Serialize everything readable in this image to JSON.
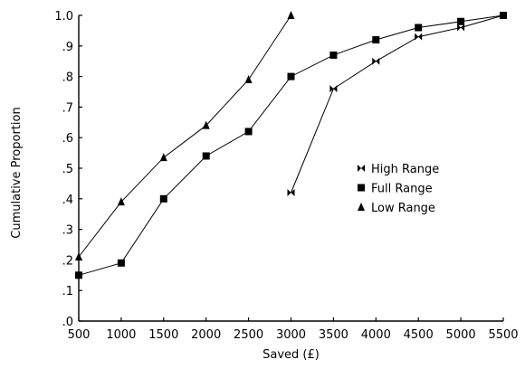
{
  "chart_data": {
    "type": "line",
    "xlabel": "Saved (£)",
    "ylabel": "Cumulative Proportion",
    "xlim": [
      500,
      5500
    ],
    "ylim": [
      0,
      1.0
    ],
    "x_ticks": [
      500,
      1000,
      1500,
      2000,
      2500,
      3000,
      3500,
      4000,
      4500,
      5000,
      5500
    ],
    "x_tick_labels": [
      "500",
      "1000",
      "1500",
      "2000",
      "2500",
      "3000",
      "3500",
      "4000",
      "4500",
      "5000",
      "5500"
    ],
    "y_ticks": [
      0,
      0.1,
      0.2,
      0.3,
      0.4,
      0.5,
      0.6,
      0.7,
      0.8,
      0.9,
      1.0
    ],
    "y_tick_labels": [
      ".0",
      ".1",
      ".2",
      ".3",
      ".4",
      ".5",
      ".6",
      ".7",
      ".8",
      ".9",
      "1.0"
    ],
    "grid": false,
    "legend_position": "center-right",
    "series": [
      {
        "name": "High Range",
        "marker": "bowtie",
        "x": [
          3000,
          3500,
          4000,
          4500,
          5000,
          5500
        ],
        "values": [
          0.42,
          0.76,
          0.85,
          0.93,
          0.96,
          1.0
        ]
      },
      {
        "name": "Full Range",
        "marker": "square",
        "x": [
          500,
          1000,
          1500,
          2000,
          2500,
          3000,
          3500,
          4000,
          4500,
          5000,
          5500
        ],
        "values": [
          0.15,
          0.19,
          0.4,
          0.54,
          0.62,
          0.8,
          0.87,
          0.92,
          0.96,
          0.98,
          1.0
        ]
      },
      {
        "name": "Low Range",
        "marker": "triangle",
        "x": [
          500,
          1000,
          1500,
          2000,
          2500,
          3000
        ],
        "values": [
          0.21,
          0.39,
          0.535,
          0.64,
          0.79,
          1.0
        ]
      }
    ]
  }
}
